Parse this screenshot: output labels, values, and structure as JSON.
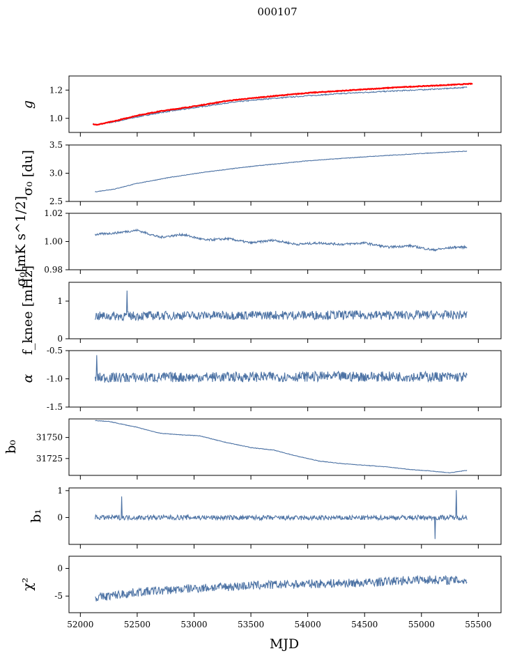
{
  "figure": {
    "suptitle": "000107",
    "xlabel": "MJD"
  },
  "colors": {
    "series": "#4c72a4",
    "reference": "#ff0000"
  },
  "chart_data": [
    {
      "type": "line",
      "id": "g",
      "ylabel": "g",
      "ylabel_italic": true,
      "xlim": [
        51900,
        55700
      ],
      "ylim": [
        0.9,
        1.3
      ],
      "yticks": [
        "1.0",
        "1.2"
      ],
      "ytick_values": [
        1.0,
        1.2
      ],
      "xticks": [
        52000,
        52500,
        53000,
        53500,
        54000,
        54500,
        55000,
        55500
      ],
      "xticklabels_visible": false,
      "noise": 0.004,
      "series": [
        {
          "name": "",
          "color": "#4c72a4",
          "x": [
            52110,
            52150,
            52300,
            52500,
            52700,
            53000,
            53300,
            53600,
            54000,
            54400,
            54800,
            55200,
            55400
          ],
          "y": [
            0.96,
            0.955,
            0.975,
            1.01,
            1.04,
            1.075,
            1.11,
            1.135,
            1.16,
            1.18,
            1.195,
            1.21,
            1.22
          ]
        },
        {
          "name": "",
          "color": "#ff0000",
          "x": [
            52110,
            52150,
            52300,
            52500,
            52700,
            53000,
            53300,
            53600,
            54000,
            54400,
            54800,
            55200,
            55450
          ],
          "y": [
            0.96,
            0.955,
            0.98,
            1.02,
            1.05,
            1.085,
            1.125,
            1.15,
            1.18,
            1.2,
            1.22,
            1.235,
            1.245
          ]
        }
      ]
    },
    {
      "type": "line",
      "id": "sigma0_du",
      "ylabel": "σ₀ [du]",
      "xlim": [
        51900,
        55700
      ],
      "ylim": [
        2.5,
        3.5
      ],
      "yticks": [
        "2.5",
        "3.0",
        "3.5"
      ],
      "ytick_values": [
        2.5,
        3.0,
        3.5
      ],
      "xticks": [
        52000,
        52500,
        53000,
        53500,
        54000,
        54500,
        55000,
        55500
      ],
      "xticklabels_visible": false,
      "noise": 0.005,
      "series": [
        {
          "name": "",
          "color": "#4c72a4",
          "x": [
            52130,
            52300,
            52500,
            52800,
            53100,
            53500,
            54000,
            54500,
            55000,
            55400
          ],
          "y": [
            2.67,
            2.72,
            2.82,
            2.93,
            3.02,
            3.12,
            3.22,
            3.29,
            3.35,
            3.39
          ]
        }
      ]
    },
    {
      "type": "line",
      "id": "sigma0_mK",
      "ylabel": "σ₀[mK s^1/2]",
      "xlim": [
        51900,
        55700
      ],
      "ylim": [
        0.98,
        1.02
      ],
      "yticks": [
        "0.98",
        "1.00",
        "1.02"
      ],
      "ytick_values": [
        0.98,
        1.0,
        1.02
      ],
      "xticks": [
        52000,
        52500,
        53000,
        53500,
        54000,
        54500,
        55000,
        55500
      ],
      "xticklabels_visible": false,
      "noise": 0.0008,
      "series": [
        {
          "name": "",
          "color": "#4c72a4",
          "x": [
            52130,
            52300,
            52500,
            52700,
            52900,
            53100,
            53300,
            53500,
            53700,
            53900,
            54100,
            54300,
            54500,
            54700,
            54900,
            55100,
            55300,
            55400
          ],
          "y": [
            1.005,
            1.006,
            1.008,
            1.003,
            1.005,
            1.001,
            1.002,
            0.999,
            1.001,
            0.998,
            0.999,
            0.998,
            0.999,
            0.996,
            0.997,
            0.994,
            0.996,
            0.996
          ]
        }
      ]
    },
    {
      "type": "line",
      "id": "fknee",
      "ylabel": "f_knee [mHz]",
      "xlim": [
        51900,
        55700
      ],
      "ylim": [
        0,
        1.5
      ],
      "yticks": [
        "0",
        "1"
      ],
      "ytick_values": [
        0,
        1
      ],
      "xticks": [
        52000,
        52500,
        53000,
        53500,
        54000,
        54500,
        55000,
        55500
      ],
      "xticklabels_visible": false,
      "noise": 0.12,
      "series": [
        {
          "name": "",
          "color": "#4c72a4",
          "x": [
            52130,
            53000,
            54000,
            55000,
            55400
          ],
          "y": [
            0.6,
            0.62,
            0.63,
            0.63,
            0.63
          ]
        }
      ]
    },
    {
      "type": "line",
      "id": "alpha",
      "ylabel": "α",
      "ylabel_italic": true,
      "xlim": [
        51900,
        55700
      ],
      "ylim": [
        -1.5,
        -0.5
      ],
      "yticks": [
        "-1.5",
        "-1.0",
        "-0.5"
      ],
      "ytick_values": [
        -1.5,
        -1.0,
        -0.5
      ],
      "xticks": [
        52000,
        52500,
        53000,
        53500,
        54000,
        54500,
        55000,
        55500
      ],
      "xticklabels_visible": false,
      "noise": 0.09,
      "series": [
        {
          "name": "",
          "color": "#4c72a4",
          "x": [
            52130,
            53000,
            54000,
            55000,
            55400
          ],
          "y": [
            -0.98,
            -0.97,
            -0.96,
            -0.96,
            -0.97
          ]
        }
      ]
    },
    {
      "type": "line",
      "id": "b0",
      "ylabel": "b₀",
      "xlim": [
        51900,
        55700
      ],
      "ylim": [
        31705,
        31772
      ],
      "yticks": [
        "31725",
        "31750"
      ],
      "ytick_values": [
        31725,
        31750
      ],
      "xticks": [
        52000,
        52500,
        53000,
        53500,
        54000,
        54500,
        55000,
        55500
      ],
      "xticklabels_visible": false,
      "noise": 0.3,
      "series": [
        {
          "name": "",
          "color": "#4c72a4",
          "x": [
            52130,
            52250,
            52500,
            52700,
            52900,
            53050,
            53250,
            53500,
            53700,
            53900,
            54100,
            54300,
            54500,
            54700,
            54900,
            55100,
            55250,
            55400
          ],
          "y": [
            31770,
            31769,
            31762,
            31755,
            31753,
            31752,
            31745,
            31738,
            31735,
            31728,
            31722,
            31719,
            31717,
            31715,
            31712,
            31710,
            31708,
            31711
          ]
        }
      ]
    },
    {
      "type": "line",
      "id": "b1",
      "ylabel": "b₁",
      "xlim": [
        51900,
        55700
      ],
      "ylim": [
        -1.0,
        1.1
      ],
      "yticks": [
        "0",
        "1"
      ],
      "ytick_values": [
        0,
        1
      ],
      "xticks": [
        52000,
        52500,
        53000,
        53500,
        54000,
        54500,
        55000,
        55500
      ],
      "xticklabels_visible": false,
      "noise": 0.09,
      "series": [
        {
          "name": "",
          "color": "#4c72a4",
          "x": [
            52130,
            53000,
            54000,
            55000,
            55400
          ],
          "y": [
            0.0,
            0.0,
            -0.02,
            0.0,
            0.0
          ]
        }
      ]
    },
    {
      "type": "line",
      "id": "chi2",
      "ylabel": "χ²",
      "xlim": [
        51900,
        55700
      ],
      "ylim": [
        -8,
        2.2
      ],
      "yticks": [
        "-5",
        "0"
      ],
      "ytick_values": [
        -5,
        0
      ],
      "xticks": [
        52000,
        52500,
        53000,
        53500,
        54000,
        54500,
        55000,
        55500
      ],
      "xticklabels_visible": true,
      "noise": 0.8,
      "series": [
        {
          "name": "",
          "color": "#4c72a4",
          "x": [
            52130,
            52500,
            53000,
            53500,
            54000,
            54500,
            55000,
            55400
          ],
          "y": [
            -5.3,
            -4.3,
            -3.6,
            -3.1,
            -2.8,
            -2.6,
            -2.0,
            -2.2
          ]
        }
      ]
    }
  ]
}
